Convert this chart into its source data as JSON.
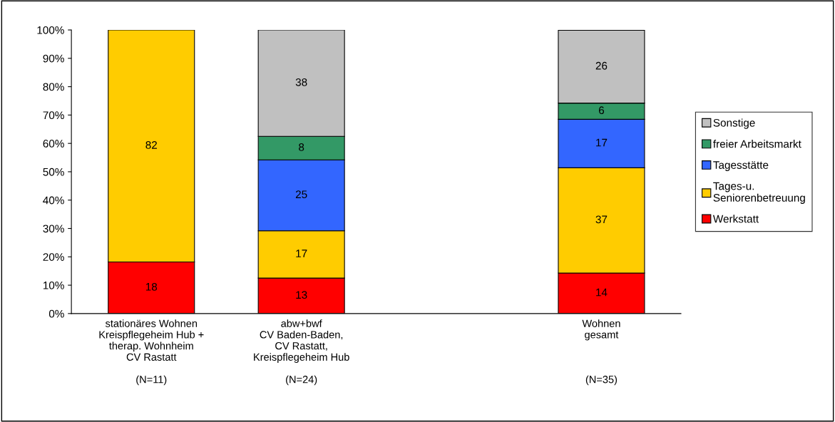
{
  "chart_data": {
    "type": "bar",
    "stacked": true,
    "categories": [
      "stationäres Wohnen\nKreispflegeheim Hub +\ntherap. Wohnheim\nCV Rastatt\n\n(N=11)",
      "abw+bwf\nCV Baden-Baden,\nCV Rastatt,\nKreispflegeheim Hub\n\n(N=24)",
      null,
      "Wohnen\ngesamt\n\n\n\n(N=35)"
    ],
    "series": [
      {
        "name": "Werkstatt",
        "color": "#ff0000",
        "values": [
          18.2,
          12.5,
          null,
          14.3
        ],
        "value_labels": [
          "18",
          "13",
          null,
          "14"
        ]
      },
      {
        "name": "Tages-u.\nSeniorenbetreuung",
        "color": "#ffcc00",
        "values": [
          81.8,
          16.7,
          null,
          37.1
        ],
        "value_labels": [
          "82",
          "17",
          null,
          "37"
        ]
      },
      {
        "name": "Tagesstätte",
        "color": "#3366ff",
        "values": [
          null,
          25,
          null,
          17.1
        ],
        "value_labels": [
          null,
          "25",
          null,
          "17"
        ]
      },
      {
        "name": "freier Arbeitsmarkt",
        "color": "#339966",
        "values": [
          null,
          8.3,
          null,
          5.7
        ],
        "value_labels": [
          null,
          "8",
          null,
          "6"
        ]
      },
      {
        "name": "Sonstige",
        "color": "#c0c0c0",
        "values": [
          null,
          37.5,
          null,
          25.7
        ],
        "value_labels": [
          null,
          "38",
          null,
          "26"
        ]
      }
    ],
    "ylim": [
      0,
      100
    ],
    "yticks": [
      {
        "value": 0,
        "label": "0%"
      },
      {
        "value": 10,
        "label": "10%"
      },
      {
        "value": 20,
        "label": "20%"
      },
      {
        "value": 30,
        "label": "30%"
      },
      {
        "value": 40,
        "label": "40%"
      },
      {
        "value": 50,
        "label": "50%"
      },
      {
        "value": 60,
        "label": "60%"
      },
      {
        "value": 70,
        "label": "70%"
      },
      {
        "value": 80,
        "label": "80%"
      },
      {
        "value": 90,
        "label": "90%"
      },
      {
        "value": 100,
        "label": "100%"
      }
    ],
    "grid": false,
    "legend": "right"
  }
}
